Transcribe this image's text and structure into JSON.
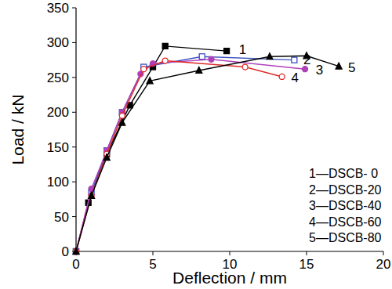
{
  "chart_data": {
    "type": "line",
    "x_label": "Deflection / mm",
    "y_label": "Load / kN",
    "xlim": [
      0,
      20
    ],
    "xticks": [
      0,
      5,
      10,
      15,
      20
    ],
    "ylim": [
      0,
      350
    ],
    "yticks": [
      0,
      50,
      100,
      150,
      200,
      250,
      300,
      350
    ],
    "grid": false,
    "legend": "lower right",
    "series": [
      {
        "name": "1—DSCB- 0",
        "color": "#000000",
        "marker": "square",
        "x": [
          0,
          0.8,
          2,
          3.5,
          5,
          5.8,
          9.8
        ],
        "values": [
          0,
          70,
          140,
          210,
          265,
          295,
          288
        ]
      },
      {
        "name": "2—DSCB-20",
        "color": "#3a4fc0",
        "marker": "square-open",
        "x": [
          0,
          1,
          2,
          3,
          4.4,
          8.2,
          14.2
        ],
        "values": [
          0,
          85,
          145,
          200,
          265,
          280,
          275
        ]
      },
      {
        "name": "3—DSCB-40",
        "color": "#b040b8",
        "marker": "circle",
        "x": [
          0,
          1,
          2,
          3,
          4.2,
          5,
          8.8,
          14.9
        ],
        "values": [
          0,
          90,
          145,
          200,
          255,
          270,
          276,
          262
        ]
      },
      {
        "name": "4—DSCB-60",
        "color": "#e02828",
        "marker": "circle-open",
        "x": [
          0,
          1,
          2,
          3,
          4.4,
          5.8,
          11,
          13.4
        ],
        "values": [
          0,
          80,
          140,
          195,
          262,
          274,
          265,
          251
        ]
      },
      {
        "name": "5—DSCB-80",
        "color": "#000000",
        "marker": "triangle",
        "x": [
          0,
          1,
          2,
          3,
          4.8,
          8,
          12.6,
          15,
          17.1
        ],
        "values": [
          0,
          80,
          135,
          185,
          245,
          260,
          280,
          281,
          266
        ]
      }
    ],
    "annotations": [
      {
        "text": "1",
        "x": 10.6,
        "y": 290
      },
      {
        "text": "2",
        "x": 14.8,
        "y": 276
      },
      {
        "text": "3",
        "x": 15.6,
        "y": 261
      },
      {
        "text": "4",
        "x": 14.0,
        "y": 250
      },
      {
        "text": "5",
        "x": 17.7,
        "y": 265
      }
    ]
  }
}
